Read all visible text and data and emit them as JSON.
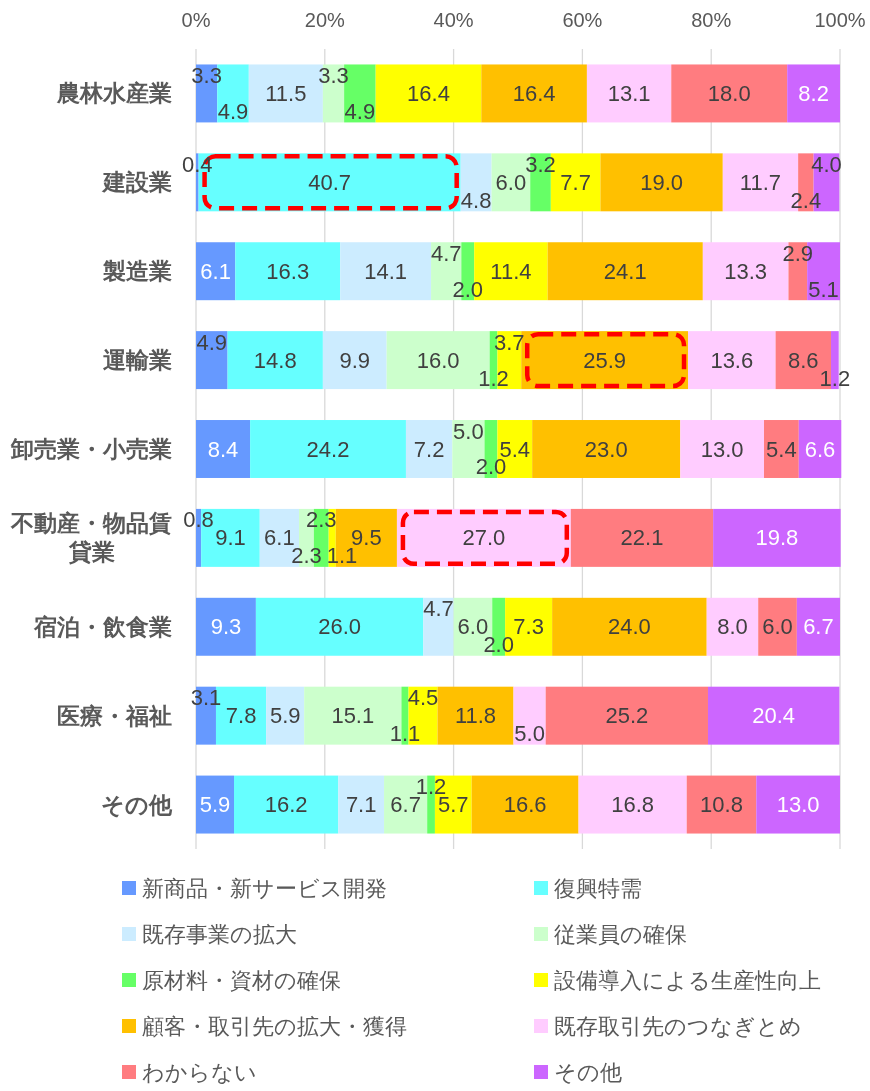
{
  "chart_data": {
    "type": "bar",
    "orientation": "horizontal",
    "stacked": true,
    "categories": [
      "農林水産業",
      "建設業",
      "製造業",
      "運輸業",
      "卸売業・小売業",
      "不動産・物品賃貸業",
      "宿泊・飲食業",
      "医療・福祉",
      "その他"
    ],
    "series": [
      {
        "name": "新商品・新サービス開発",
        "color": "#6699ff",
        "values": [
          3.3,
          0.4,
          6.1,
          4.9,
          8.4,
          0.8,
          9.3,
          3.1,
          5.9
        ],
        "value_labels": [
          "3.3",
          "0.4",
          "6.1",
          "4.9",
          "8.4",
          "0.8",
          "9.3",
          "3.1",
          "5.9"
        ]
      },
      {
        "name": "復興特需",
        "color": "#66ffff",
        "values": [
          4.9,
          40.7,
          16.3,
          14.8,
          24.2,
          9.1,
          26.0,
          7.8,
          16.2
        ],
        "value_labels": [
          "4.9",
          "40.7",
          "16.3",
          "14.8",
          "24.2",
          "9.1",
          "26.0",
          "7.8",
          "16.2"
        ]
      },
      {
        "name": "既存事業の拡大",
        "color": "#ccecff",
        "values": [
          11.5,
          4.8,
          14.1,
          9.9,
          7.2,
          6.1,
          4.7,
          5.9,
          7.1
        ],
        "value_labels": [
          "11.5",
          "4.8",
          "14.1",
          "9.9",
          "7.2",
          "6.1",
          "4.7",
          "5.9",
          "7.1"
        ]
      },
      {
        "name": "従業員の確保",
        "color": "#ccffcc",
        "values": [
          3.3,
          6.0,
          4.7,
          16.0,
          5.0,
          2.3,
          6.0,
          15.1,
          6.7
        ],
        "value_labels": [
          "3.3",
          "6.0",
          "4.7",
          "16.0",
          "5.0",
          "2.3",
          "6.0",
          "15.1",
          "6.7"
        ]
      },
      {
        "name": "原材料・資材の確保",
        "color": "#66ff66",
        "values": [
          4.9,
          3.2,
          2.0,
          1.2,
          2.0,
          2.3,
          2.0,
          1.1,
          1.2
        ],
        "value_labels": [
          "4.9",
          "3.2",
          "2.0",
          "1.2",
          "2.0",
          "2.3",
          "2.0",
          "1.1",
          "1.2"
        ]
      },
      {
        "name": "設備導入による生産性向上",
        "color": "#ffff00",
        "values": [
          16.4,
          7.7,
          11.4,
          3.7,
          5.4,
          1.1,
          7.3,
          4.5,
          5.7
        ],
        "value_labels": [
          "16.4",
          "7.7",
          "11.4",
          "3.7",
          "5.4",
          "1.1",
          "7.3",
          "4.5",
          "5.7"
        ]
      },
      {
        "name": "顧客・取引先の拡大・獲得",
        "color": "#ffc000",
        "values": [
          16.4,
          19.0,
          24.1,
          25.9,
          23.0,
          9.5,
          24.0,
          11.8,
          16.6
        ],
        "value_labels": [
          "16.4",
          "19.0",
          "24.1",
          "25.9",
          "23.0",
          "9.5",
          "24.0",
          "11.8",
          "16.6"
        ]
      },
      {
        "name": "既存取引先のつなぎとめ",
        "color": "#ffccff",
        "values": [
          13.1,
          11.7,
          13.3,
          13.6,
          13.0,
          27.0,
          8.0,
          5.0,
          16.8
        ],
        "value_labels": [
          "13.1",
          "11.7",
          "13.3",
          "13.6",
          "13.0",
          "27.0",
          "8.0",
          "5.0",
          "16.8"
        ]
      },
      {
        "name": "わからない",
        "color": "#ff7c80",
        "values": [
          18.0,
          2.4,
          2.9,
          8.6,
          5.4,
          22.1,
          6.0,
          25.2,
          10.8
        ],
        "value_labels": [
          "18.0",
          "2.4",
          "2.9",
          "8.6",
          "5.4",
          "22.1",
          "6.0",
          "25.2",
          "10.8"
        ]
      },
      {
        "name": "その他",
        "color": "#cc66ff",
        "values": [
          8.2,
          4.0,
          5.1,
          1.2,
          6.6,
          19.8,
          6.7,
          20.4,
          13.0
        ],
        "value_labels": [
          "8.2",
          "4.0",
          "5.1",
          "1.2",
          "6.6",
          "19.8",
          "6.7",
          "20.4",
          "13.0"
        ]
      }
    ],
    "xlim": [
      0,
      100
    ],
    "xticks": [
      {
        "value": 0,
        "label": "0%"
      },
      {
        "value": 20,
        "label": "20%"
      },
      {
        "value": 40,
        "label": "40%"
      },
      {
        "value": 60,
        "label": "60%"
      },
      {
        "value": 80,
        "label": "80%"
      },
      {
        "value": 100,
        "label": "100%"
      }
    ],
    "grid": "x",
    "legend": "bottom"
  }
}
